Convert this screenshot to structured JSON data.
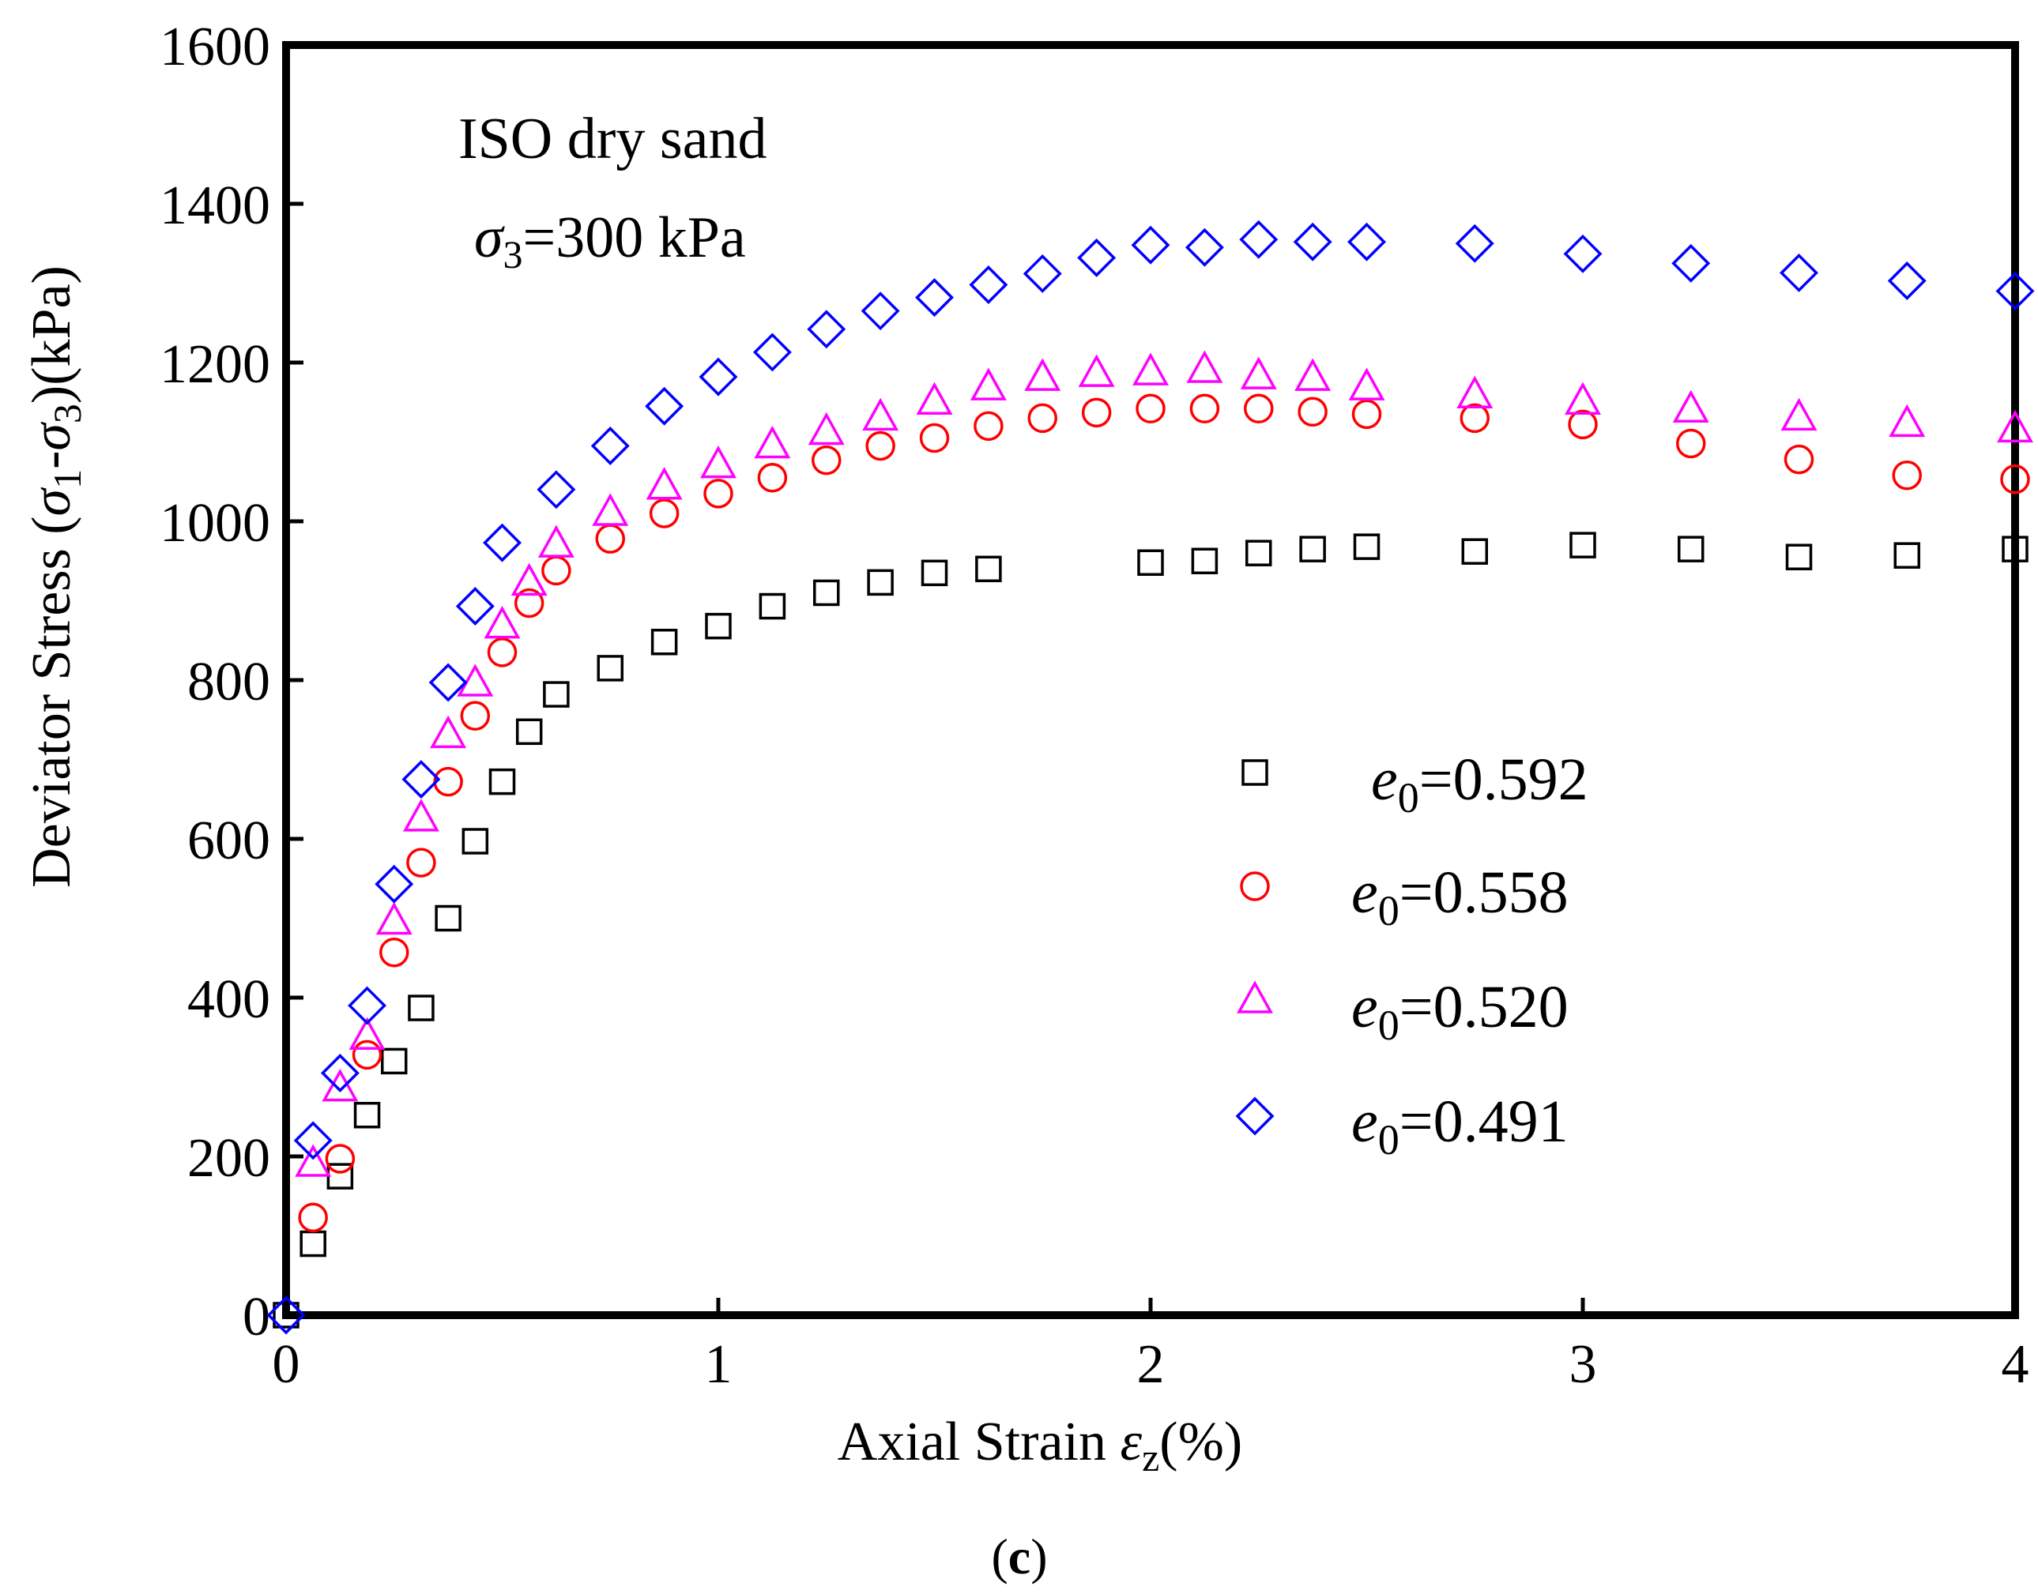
{
  "chart_data": {
    "type": "scatter",
    "title": "",
    "panel_label": {
      "open": "(",
      "letter": "c",
      "close": ")"
    },
    "annotation": {
      "line1": "ISO dry sand",
      "line2_symbol": "σ",
      "line2_sub": "3",
      "line2_rest": "=300 kPa"
    },
    "xlabel": {
      "pre": "Axial Strain ",
      "symbol": "ε",
      "sub": "z",
      "post": "(%)"
    },
    "ylabel": {
      "pre": "Deviator Stress (",
      "s1": "σ",
      "sub1": "1",
      "mid": "-",
      "s2": "σ",
      "sub2": "3",
      "post": ")(kPa)"
    },
    "xlim": [
      0,
      4
    ],
    "ylim": [
      0,
      1600
    ],
    "xticks": [
      0,
      1,
      2,
      3,
      4
    ],
    "yticks": [
      0,
      200,
      400,
      600,
      800,
      1000,
      1200,
      1400,
      1600
    ],
    "grid": false,
    "legend_position": "center-right",
    "series": [
      {
        "name_symbol": "e",
        "name_sub": "0",
        "name_rest": "=0.592",
        "marker": "square",
        "color": "#000000",
        "x": [
          0.0,
          0.0625,
          0.125,
          0.1875,
          0.25,
          0.3125,
          0.375,
          0.4375,
          0.5,
          0.5625,
          0.625,
          0.75,
          0.875,
          1.0,
          1.125,
          1.25,
          1.375,
          1.5,
          1.625,
          2.0,
          2.125,
          2.25,
          2.375,
          2.5,
          2.75,
          3.0,
          3.25,
          3.5,
          3.75,
          4.0
        ],
        "y": [
          0,
          90,
          175,
          252,
          320,
          387,
          500,
          597,
          672,
          735,
          782,
          815,
          848,
          868,
          893,
          910,
          923,
          935,
          940,
          948,
          950,
          960,
          965,
          968,
          962,
          970,
          965,
          955,
          957,
          965
        ]
      },
      {
        "name_symbol": "e",
        "name_sub": "0",
        "name_rest": "=0.558",
        "marker": "circle",
        "color": "#ff0000",
        "x": [
          0.0625,
          0.125,
          0.1875,
          0.25,
          0.3125,
          0.375,
          0.4375,
          0.5,
          0.5625,
          0.625,
          0.75,
          0.875,
          1.0,
          1.125,
          1.25,
          1.375,
          1.5,
          1.625,
          1.75,
          1.875,
          2.0,
          2.125,
          2.25,
          2.375,
          2.5,
          2.75,
          3.0,
          3.25,
          3.5,
          3.75,
          4.0
        ],
        "y": [
          123,
          197,
          328,
          457,
          570,
          672,
          755,
          835,
          897,
          938,
          978,
          1010,
          1035,
          1055,
          1077,
          1095,
          1105,
          1120,
          1130,
          1137,
          1142,
          1142,
          1142,
          1138,
          1135,
          1130,
          1122,
          1098,
          1078,
          1058,
          1053
        ]
      },
      {
        "name_symbol": "e",
        "name_sub": "0",
        "name_rest": "=0.520",
        "marker": "triangle",
        "color": "#ff00ff",
        "x": [
          0.0625,
          0.125,
          0.1875,
          0.25,
          0.3125,
          0.375,
          0.4375,
          0.5,
          0.5625,
          0.625,
          0.75,
          0.875,
          1.0,
          1.125,
          1.25,
          1.375,
          1.5,
          1.625,
          1.75,
          1.875,
          2.0,
          2.125,
          2.25,
          2.375,
          2.5,
          2.75,
          3.0,
          3.25,
          3.5,
          3.75,
          4.0
        ],
        "y": [
          190,
          285,
          350,
          495,
          625,
          730,
          795,
          868,
          922,
          970,
          1010,
          1043,
          1070,
          1095,
          1112,
          1130,
          1150,
          1168,
          1180,
          1185,
          1187,
          1190,
          1182,
          1180,
          1168,
          1158,
          1150,
          1140,
          1130,
          1122,
          1115
        ]
      },
      {
        "name_symbol": "e",
        "name_sub": "0",
        "name_rest": "=0.491",
        "marker": "diamond",
        "color": "#0000ff",
        "x": [
          0.0,
          0.0625,
          0.125,
          0.1875,
          0.25,
          0.3125,
          0.375,
          0.4375,
          0.5,
          0.625,
          0.75,
          0.875,
          1.0,
          1.125,
          1.25,
          1.375,
          1.5,
          1.625,
          1.75,
          1.875,
          2.0,
          2.125,
          2.25,
          2.375,
          2.5,
          2.75,
          3.0,
          3.25,
          3.5,
          3.75,
          4.0
        ],
        "y": [
          0,
          220,
          305,
          390,
          543,
          675,
          797,
          893,
          973,
          1040,
          1095,
          1145,
          1182,
          1213,
          1242,
          1265,
          1282,
          1298,
          1312,
          1332,
          1348,
          1345,
          1355,
          1352,
          1352,
          1350,
          1337,
          1325,
          1313,
          1303,
          1290
        ]
      }
    ]
  }
}
